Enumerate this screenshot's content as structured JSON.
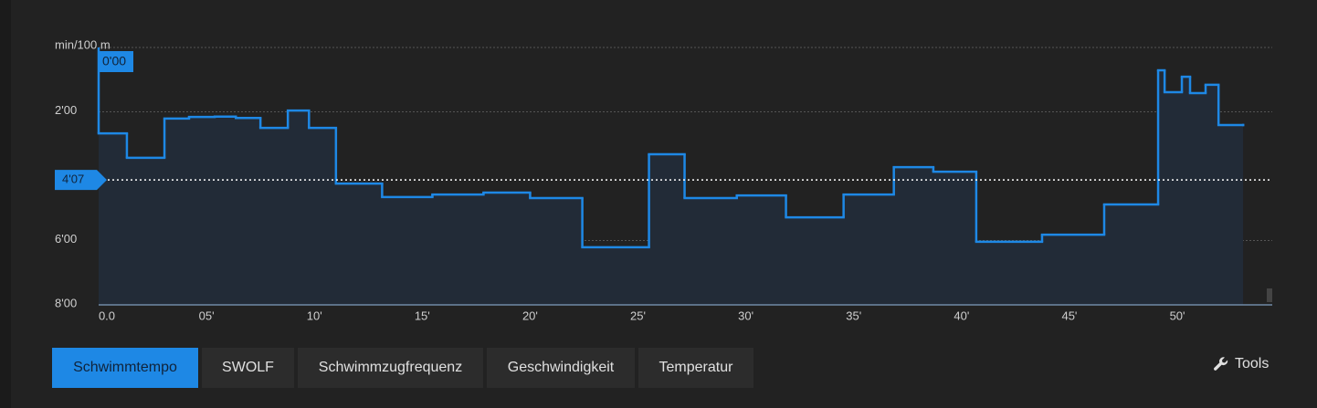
{
  "chart_data": {
    "type": "line",
    "step": "after",
    "inverted": true,
    "grid": true,
    "ylabel": "min/100 m",
    "color": "#1e88e5",
    "area_color": "#222b37",
    "x": [
      0,
      1.31,
      3.05,
      4.19,
      5.38,
      6.36,
      7.5,
      8.77,
      9.75,
      11.0,
      13.14,
      15.47,
      17.84,
      20.0,
      22.42,
      25.51,
      27.16,
      29.58,
      31.86,
      34.53,
      36.86,
      38.69,
      40.68,
      43.73,
      46.61,
      49.11,
      49.41,
      50.21,
      50.59,
      51.31,
      51.91,
      53.05
    ],
    "values": [
      2.67,
      3.43,
      2.21,
      2.16,
      2.15,
      2.19,
      2.5,
      1.96,
      2.5,
      4.23,
      4.65,
      4.57,
      4.51,
      4.68,
      6.21,
      3.32,
      4.68,
      4.6,
      5.28,
      4.57,
      3.72,
      3.86,
      6.04,
      5.82,
      4.88,
      0.71,
      1.39,
      0.91,
      1.42,
      1.16,
      2.41,
      2.41
    ],
    "xlim": [
      0,
      54.4
    ],
    "xticks": [
      {
        "value": 0,
        "label": "0.0"
      },
      {
        "value": 5,
        "label": "05'"
      },
      {
        "value": 10,
        "label": "10'"
      },
      {
        "value": 15,
        "label": "15'"
      },
      {
        "value": 20,
        "label": "20'"
      },
      {
        "value": 25,
        "label": "25'"
      },
      {
        "value": 30,
        "label": "30'"
      },
      {
        "value": 35,
        "label": "35'"
      },
      {
        "value": 40,
        "label": "40'"
      },
      {
        "value": 45,
        "label": "45'"
      },
      {
        "value": 50,
        "label": "50'"
      }
    ],
    "ylim": [
      0,
      8
    ],
    "yticks": [
      {
        "value": 2,
        "label": "2'00"
      },
      {
        "value": 6,
        "label": "6'00"
      },
      {
        "value": 8,
        "label": "8'00"
      }
    ],
    "average": {
      "value": 4.1167,
      "label": "4'07"
    },
    "cursor": {
      "value": 0,
      "label": "0'00"
    }
  },
  "tabs": [
    "Schwimmtempo",
    "SWOLF",
    "Schwimmzugfrequenz",
    "Geschwindigkeit",
    "Temperatur"
  ],
  "active_tab": 0,
  "tools": "Tools"
}
